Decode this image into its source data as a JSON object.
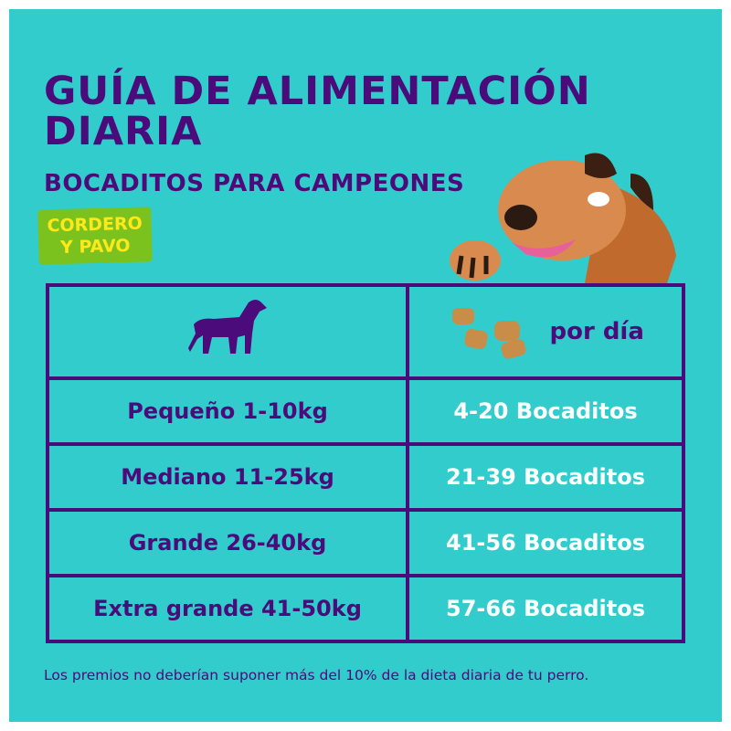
{
  "title_line1": "GUÍA DE ALIMENTACIÓN",
  "title_line2": "DIARIA",
  "subtitle": "BOCADITOS PARA CAMPEONES",
  "badge_line1": "CORDERO",
  "badge_line2": "Y PAVO",
  "table": {
    "header_icon": "dog-silhouette-icon",
    "header_right": "por día",
    "rows": [
      {
        "size": "Pequeño 1-10kg",
        "amount": "4-20 Bocaditos"
      },
      {
        "size": "Mediano 11-25kg",
        "amount": "21-39 Bocaditos"
      },
      {
        "size": "Grande 26-40kg",
        "amount": "41-56 Bocaditos"
      },
      {
        "size": "Extra grande 41-50kg",
        "amount": "57-66 Bocaditos"
      }
    ]
  },
  "footnote": "Los premios no deberían suponer más del 10% de la dieta diaria de tu perro.",
  "colors": {
    "background": "#33cccc",
    "purple": "#4c0b7a",
    "badge": "#7cc21e",
    "badge_text": "#ffe81a"
  }
}
